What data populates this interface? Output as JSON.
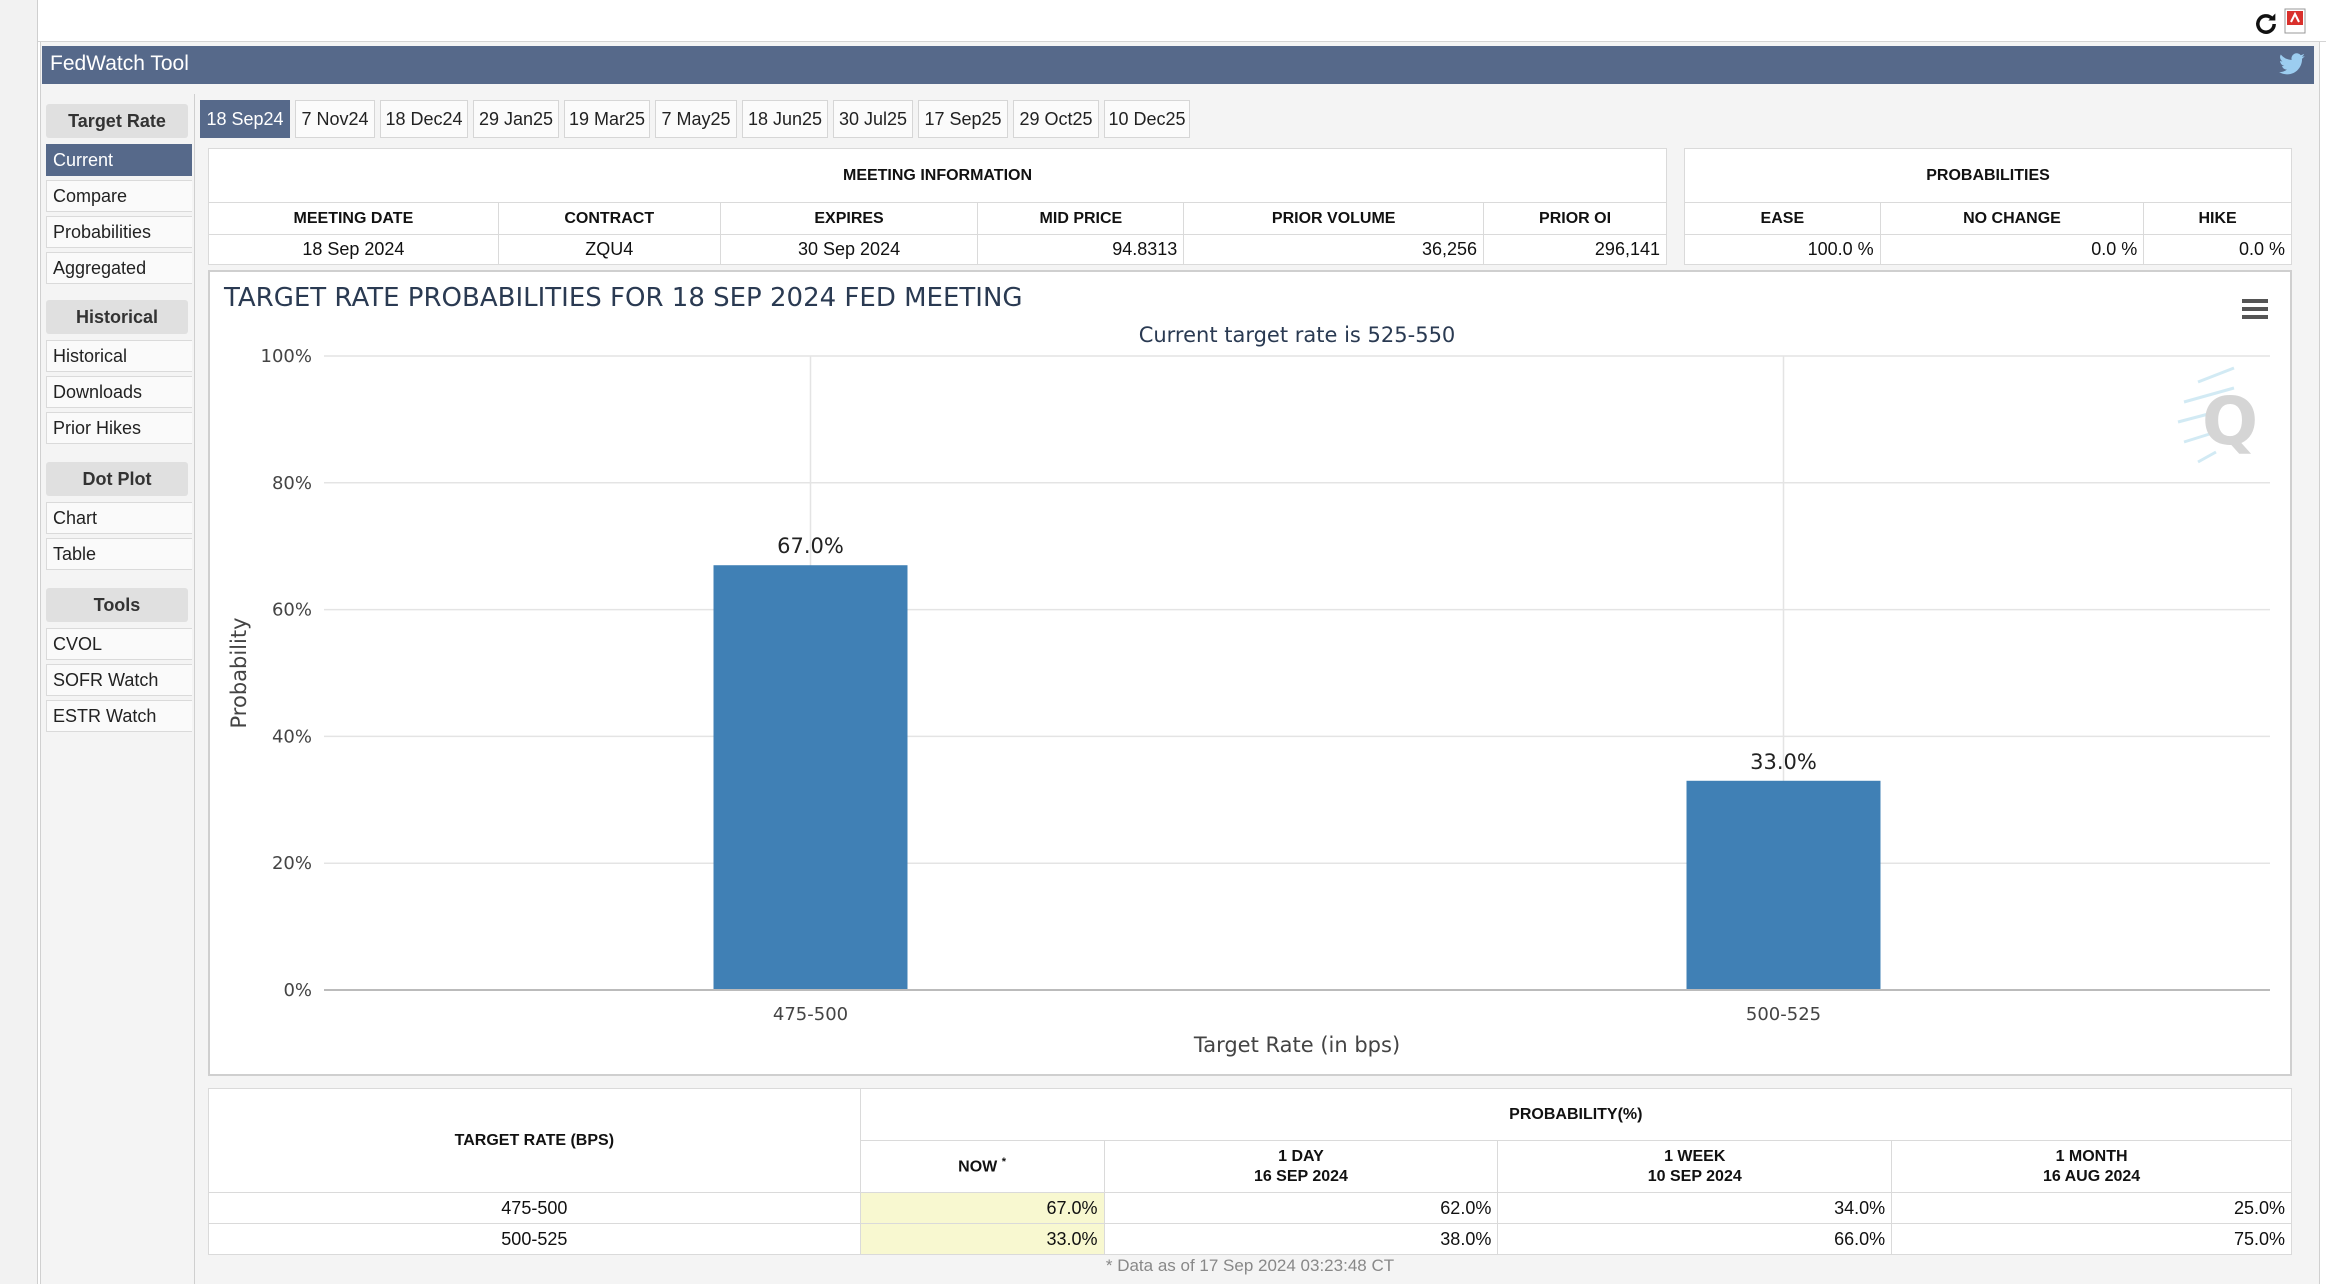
{
  "window": {
    "title": "FedWatch Tool"
  },
  "icons": {
    "refresh": "refresh-icon",
    "pdf": "pdf-icon",
    "twitter": "twitter-icon",
    "menu": "hamburger-menu-icon"
  },
  "colors": {
    "header": "#56698a",
    "bar": "#4080b5",
    "now_highlight": "#f8f8d0"
  },
  "sidebar": {
    "sections": [
      {
        "heading": "Target Rate",
        "items": [
          "Current",
          "Compare",
          "Probabilities",
          "Aggregated"
        ]
      },
      {
        "heading": "Historical",
        "items": [
          "Historical",
          "Downloads",
          "Prior Hikes"
        ]
      },
      {
        "heading": "Dot Plot",
        "items": [
          "Chart",
          "Table"
        ]
      },
      {
        "heading": "Tools",
        "items": [
          "CVOL",
          "SOFR Watch",
          "ESTR Watch"
        ]
      }
    ],
    "active_item": "Current"
  },
  "tabs": [
    "18 Sep24",
    "7 Nov24",
    "18 Dec24",
    "29 Jan25",
    "19 Mar25",
    "7 May25",
    "18 Jun25",
    "30 Jul25",
    "17 Sep25",
    "29 Oct25",
    "10 Dec25"
  ],
  "active_tab": "18 Sep24",
  "meeting_info": {
    "title": "MEETING INFORMATION",
    "headers": [
      "MEETING DATE",
      "CONTRACT",
      "EXPIRES",
      "MID PRICE",
      "PRIOR VOLUME",
      "PRIOR OI"
    ],
    "values": [
      "18 Sep 2024",
      "ZQU4",
      "30 Sep 2024",
      "94.8313",
      "36,256",
      "296,141"
    ]
  },
  "probabilities": {
    "title": "PROBABILITIES",
    "headers": [
      "EASE",
      "NO CHANGE",
      "HIKE"
    ],
    "values": [
      "100.0 %",
      "0.0 %",
      "0.0 %"
    ]
  },
  "chart_data": {
    "type": "bar",
    "title": "TARGET RATE PROBABILITIES FOR 18 SEP 2024 FED MEETING",
    "subtitle": "Current target rate is 525-550",
    "xlabel": "Target Rate (in bps)",
    "ylabel": "Probability",
    "categories": [
      "475-500",
      "500-525"
    ],
    "values": [
      67.0,
      33.0
    ],
    "data_labels": [
      "67.0%",
      "33.0%"
    ],
    "yticks": [
      "0%",
      "20%",
      "40%",
      "60%",
      "80%",
      "100%"
    ],
    "ylim": [
      0,
      100
    ],
    "grid": true,
    "legend": "none"
  },
  "prob_table": {
    "col_target": "TARGET RATE (BPS)",
    "group_header": "PROBABILITY(%)",
    "col_now": "NOW",
    "col_now_mark": "*",
    "periods": [
      {
        "label": "1 DAY",
        "date": "16 SEP 2024"
      },
      {
        "label": "1 WEEK",
        "date": "10 SEP 2024"
      },
      {
        "label": "1 MONTH",
        "date": "16 AUG 2024"
      }
    ],
    "rows": [
      {
        "rate": "475-500",
        "now": "67.0%",
        "day": "62.0%",
        "week": "34.0%",
        "month": "25.0%"
      },
      {
        "rate": "500-525",
        "now": "33.0%",
        "day": "38.0%",
        "week": "66.0%",
        "month": "75.0%"
      }
    ],
    "footnote": "* Data as of 17 Sep 2024 03:23:48 CT"
  }
}
